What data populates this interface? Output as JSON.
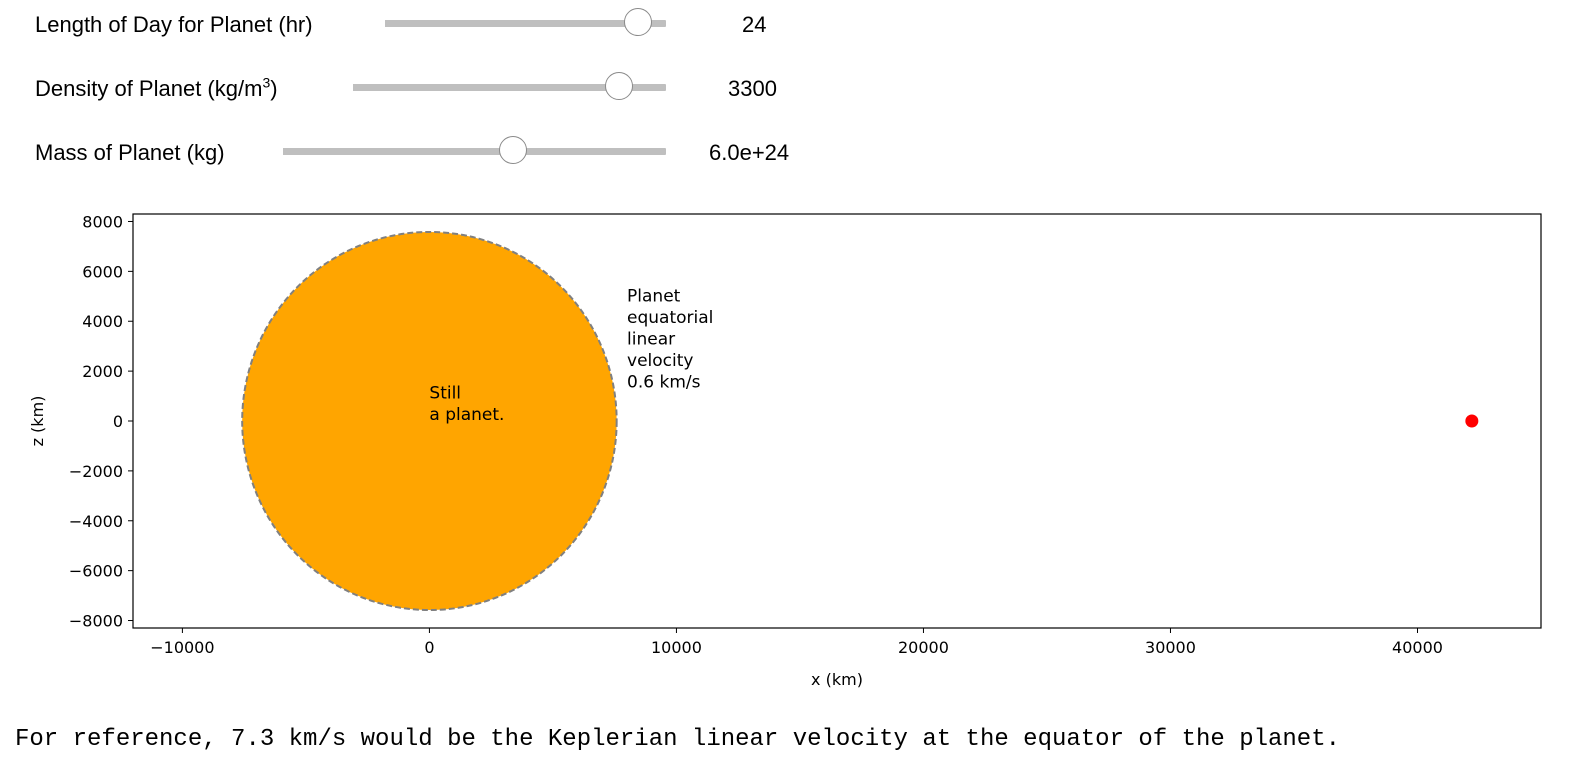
{
  "sliders": [
    {
      "label": "Length of Day for Planet (hr)",
      "value": "24",
      "fraction": 0.9
    },
    {
      "label_main": "Density of Planet (kg/m",
      "label_sup": "3",
      "label_tail": ")",
      "value": "3300",
      "fraction": 0.85
    },
    {
      "label": "Mass of Planet (kg)",
      "value": "6.0e+24",
      "fraction": 0.6
    }
  ],
  "chart_data": {
    "type": "scatter",
    "xlabel": "x (km)",
    "ylabel": "z (km)",
    "xlim": [
      -12000,
      45000
    ],
    "ylim": [
      -8300,
      8300
    ],
    "x_ticks": [
      -10000,
      0,
      10000,
      20000,
      30000,
      40000
    ],
    "x_tick_labels": [
      "−10000",
      "0",
      "10000",
      "20000",
      "30000",
      "40000"
    ],
    "y_ticks": [
      8000,
      6000,
      4000,
      2000,
      0,
      -2000,
      -4000,
      -6000,
      -8000
    ],
    "y_tick_labels": [
      "8000",
      "6000",
      "4000",
      "2000",
      "0",
      "−2000",
      "−4000",
      "−6000",
      "−8000"
    ],
    "planet": {
      "center_x": 0,
      "center_z": 0,
      "radius": 7580,
      "color": "#FFA500",
      "edge_color": "#808080"
    },
    "point": {
      "x": 42200,
      "z": 0,
      "color": "#FF0000"
    },
    "annotations": {
      "center_text": [
        "Still",
        "a planet."
      ],
      "velocity_text": [
        "Planet",
        "equatorial",
        "linear",
        "velocity",
        "0.6 km/s"
      ]
    },
    "grid": false
  },
  "footer": "For reference, 7.3 km/s would be the Keplerian linear velocity at the equator of the planet."
}
